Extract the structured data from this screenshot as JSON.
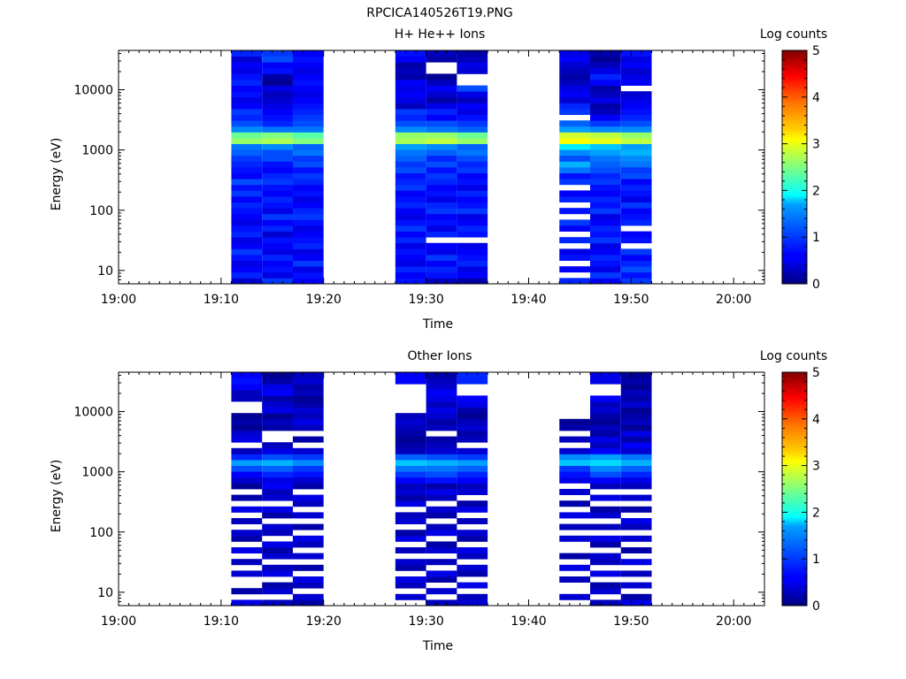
{
  "page": {
    "title": "RPCICA140526T19.PNG"
  },
  "colorbar": {
    "label": "Log counts",
    "min": 0,
    "max": 5,
    "ticks": [
      "0",
      "1",
      "2",
      "3",
      "4",
      "5"
    ]
  },
  "chart_data": [
    {
      "type": "heatmap",
      "title": "H+ He++ Ions",
      "xlabel": "Time",
      "ylabel": "Energy (eV)",
      "xticks": [
        "19:00",
        "19:10",
        "19:20",
        "19:30",
        "19:40",
        "19:50",
        "20:00"
      ],
      "yticks": [
        "10",
        "100",
        "1000",
        "10000"
      ],
      "yscale": "log",
      "xlim": [
        "19:00",
        "20:03"
      ],
      "ylim": [
        6,
        45000
      ],
      "colorscale": "jet",
      "zlim": [
        0,
        5
      ],
      "columns": [
        {
          "start": "19:11",
          "end": "19:14",
          "rows": [
            0.4,
            0.8,
            0.6,
            0.5,
            0.7,
            0.9,
            0.6,
            0.5,
            0.8,
            0.7,
            0.5,
            0.6,
            0.7,
            0.8,
            0.6,
            0.9,
            0.7,
            1.0,
            0.6,
            0.7,
            0.8,
            0.9,
            1.1,
            1.2,
            2.6,
            2.4,
            1.3,
            1.0,
            0.8,
            0.9,
            0.6,
            0.5,
            0.7,
            0.6,
            0.8,
            0.7,
            0.5,
            0.6,
            0.4,
            0.8
          ]
        },
        {
          "start": "19:14",
          "end": "19:17",
          "rows": [
            0.9,
            0.5,
            0.7,
            0.6,
            0.8,
            0.5,
            0.6,
            0.7,
            0.4,
            0.8,
            0.6,
            0.9,
            0.5,
            0.7,
            0.8,
            0.6,
            0.7,
            0.9,
            0.8,
            0.6,
            0.7,
            1.0,
            1.0,
            1.3,
            2.7,
            2.5,
            1.2,
            0.8,
            0.7,
            0.6,
            0.5,
            0.4,
            0.3,
            0.5,
            0.1,
            0.2,
            0.7,
            0.6,
            1.0,
            0.9
          ]
        },
        {
          "start": "19:17",
          "end": "19:20",
          "rows": [
            0.6,
            0.7,
            0.5,
            0.9,
            0.6,
            0.5,
            0.8,
            0.7,
            0.6,
            0.5,
            0.7,
            0.9,
            0.8,
            0.6,
            0.5,
            0.7,
            0.6,
            0.8,
            0.9,
            0.7,
            1.0,
            0.9,
            1.2,
            1.1,
            2.5,
            2.3,
            1.2,
            1.0,
            0.9,
            0.8,
            0.7,
            0.6,
            0.5,
            0.6,
            0.7,
            0.6,
            0.5,
            0.6,
            0.7,
            0.6
          ]
        },
        {
          "start": "19:27",
          "end": "19:30",
          "rows": [
            0.7,
            0.6,
            0.8,
            0.5,
            0.6,
            0.7,
            0.5,
            0.8,
            0.6,
            0.9,
            0.7,
            0.5,
            0.6,
            0.8,
            0.7,
            0.6,
            0.9,
            0.8,
            0.7,
            1.0,
            0.9,
            1.1,
            1.2,
            1.4,
            2.7,
            2.6,
            1.3,
            1.0,
            0.8,
            0.9,
            0.3,
            0.5,
            0.6,
            0.5,
            0.6,
            0.2,
            0.3,
            0.2,
            0.6,
            0.7
          ]
        },
        {
          "start": "19:30",
          "end": "19:33",
          "rows": [
            0.3,
            0.7,
            0.8,
            0.6,
            0.9,
            0.5,
            0.6,
            -1,
            0.8,
            0.5,
            0.7,
            0.6,
            0.9,
            0.8,
            0.5,
            0.7,
            0.6,
            0.8,
            0.9,
            0.7,
            1.0,
            0.8,
            1.1,
            1.3,
            2.8,
            2.6,
            1.2,
            1.0,
            0.6,
            0.8,
            0.5,
            0.2,
            0.4,
            0.6,
            0.3,
            0.1,
            -1,
            -1,
            0.2,
            0.3
          ]
        },
        {
          "start": "19:33",
          "end": "19:36",
          "rows": [
            0.2,
            0.6,
            0.5,
            0.8,
            0.7,
            0.6,
            0.5,
            -1,
            0.7,
            0.8,
            0.6,
            0.5,
            0.9,
            0.7,
            0.6,
            0.8,
            0.5,
            0.7,
            0.6,
            0.9,
            0.8,
            1.0,
            1.2,
            1.1,
            2.6,
            2.4,
            1.1,
            0.9,
            0.7,
            0.5,
            0.6,
            0.3,
            0.5,
            1.0,
            -1,
            -1,
            0.4,
            0.5,
            0.3,
            0.2
          ]
        },
        {
          "start": "19:43",
          "end": "19:46",
          "rows": [
            0.8,
            -1,
            0.6,
            -1,
            0.7,
            0.5,
            -1,
            0.8,
            -1,
            0.6,
            0.9,
            -1,
            0.7,
            -1,
            0.8,
            0.6,
            -1,
            0.9,
            0.7,
            1.2,
            1.5,
            1.0,
            1.3,
            1.8,
            3.1,
            2.9,
            1.4,
            1.1,
            -1,
            0.9,
            0.8,
            0.4,
            0.6,
            0.5,
            0.3,
            0.2,
            0.3,
            0.4,
            0.6,
            0.5
          ]
        },
        {
          "start": "19:46",
          "end": "19:49",
          "rows": [
            0.6,
            0.9,
            0.5,
            0.7,
            0.8,
            0.6,
            0.5,
            0.9,
            0.7,
            0.8,
            0.6,
            0.5,
            0.9,
            0.7,
            0.8,
            0.6,
            0.7,
            0.9,
            0.8,
            1.0,
            1.1,
            1.2,
            1.4,
            1.6,
            3.0,
            2.8,
            1.3,
            0.9,
            0.6,
            0.3,
            0.2,
            0.5,
            0.3,
            0.2,
            0.6,
            0.8,
            0.5,
            0.3,
            0.1,
            0.2
          ]
        },
        {
          "start": "19:49",
          "end": "19:52",
          "rows": [
            0.9,
            0.7,
            1.0,
            0.8,
            0.6,
            0.9,
            -1,
            0.7,
            0.6,
            -1,
            0.8,
            0.7,
            0.6,
            0.9,
            0.5,
            0.7,
            0.8,
            0.6,
            1.0,
            0.9,
            1.2,
            1.3,
            1.5,
            1.4,
            2.8,
            2.6,
            1.3,
            1.0,
            0.8,
            0.7,
            0.6,
            0.5,
            0.4,
            -1,
            0.6,
            0.5,
            0.4,
            0.6,
            0.5,
            0.7
          ]
        }
      ]
    },
    {
      "type": "heatmap",
      "title": "Other Ions",
      "xlabel": "Time",
      "ylabel": "Energy (eV)",
      "xticks": [
        "19:00",
        "19:10",
        "19:20",
        "19:30",
        "19:40",
        "19:50",
        "20:00"
      ],
      "yticks": [
        "10",
        "100",
        "1000",
        "10000"
      ],
      "yscale": "log",
      "xlim": [
        "19:00",
        "20:03"
      ],
      "ylim": [
        6,
        45000
      ],
      "colorscale": "jet",
      "zlim": [
        0,
        5
      ],
      "columns": [
        {
          "start": "19:11",
          "end": "19:14",
          "rows": [
            0.5,
            -1,
            0.2,
            -1,
            -1,
            0.4,
            -1,
            0.3,
            -1,
            0.5,
            -1,
            0.2,
            0.4,
            -1,
            0.3,
            -1,
            0.5,
            -1,
            0.2,
            -1,
            0.1,
            0.4,
            0.6,
            1.0,
            1.4,
            0.8,
            0.3,
            -1,
            0.5,
            0.4,
            0.1,
            0.2,
            0.1,
            -1,
            -1,
            0.3,
            0.3,
            0.6,
            0.7,
            0.6
          ]
        },
        {
          "start": "19:14",
          "end": "19:17",
          "rows": [
            0.3,
            -1,
            0.4,
            0.2,
            -1,
            0.5,
            0.3,
            -1,
            0.4,
            0.2,
            0.5,
            -1,
            0.3,
            0.4,
            -1,
            0.2,
            0.5,
            -1,
            0.4,
            0.3,
            0.6,
            0.5,
            0.8,
            1.1,
            1.5,
            1.0,
            0.5,
            0.3,
            -1,
            -1,
            0.2,
            0.3,
            0.1,
            0.5,
            0.4,
            0.2,
            0.6,
            0.5,
            0.2,
            0.1
          ]
        },
        {
          "start": "19:17",
          "end": "19:20",
          "rows": [
            0.2,
            0.4,
            -1,
            0.3,
            0.5,
            -1,
            0.2,
            -1,
            0.4,
            -1,
            0.3,
            0.5,
            -1,
            0.2,
            -1,
            0.4,
            -1,
            0.3,
            0.5,
            -1,
            0.2,
            0.4,
            0.7,
            0.9,
            1.3,
            0.9,
            0.4,
            -1,
            0.2,
            -1,
            0.3,
            0.5,
            0.3,
            0.4,
            0.2,
            0.1,
            0.3,
            0.2,
            0.4,
            0.3
          ]
        },
        {
          "start": "19:27",
          "end": "19:30",
          "rows": [
            -1,
            0.4,
            -1,
            0.3,
            0.5,
            -1,
            0.2,
            0.4,
            -1,
            0.3,
            -1,
            0.5,
            0.2,
            -1,
            0.4,
            0.3,
            -1,
            0.5,
            0.2,
            0.4,
            0.3,
            0.6,
            0.9,
            1.2,
            1.6,
            1.1,
            0.3,
            0.2,
            0.1,
            0.2,
            0.3,
            0.4,
            0.3,
            -1,
            -1,
            -1,
            -1,
            -1,
            0.6,
            0.6
          ]
        },
        {
          "start": "19:30",
          "end": "19:33",
          "rows": [
            0.3,
            -1,
            0.4,
            -1,
            0.2,
            0.5,
            -1,
            0.3,
            -1,
            0.4,
            0.2,
            -1,
            0.5,
            0.3,
            -1,
            0.2,
            0.4,
            -1,
            0.3,
            0.5,
            0.2,
            0.7,
            1.0,
            1.2,
            1.5,
            1.0,
            0.4,
            0.3,
            0.2,
            -1,
            0.3,
            0.2,
            0.4,
            0.5,
            0.3,
            0.5,
            0.6,
            0.4,
            0.3,
            0.2
          ]
        },
        {
          "start": "19:33",
          "end": "19:36",
          "rows": [
            0.4,
            0.3,
            -1,
            0.5,
            -1,
            0.2,
            0.4,
            -1,
            0.3,
            0.5,
            -1,
            0.2,
            0.4,
            -1,
            0.3,
            -1,
            0.5,
            0.2,
            -1,
            0.4,
            0.3,
            0.6,
            0.8,
            1.1,
            1.4,
            0.9,
            0.4,
            -1,
            0.3,
            0.2,
            0.4,
            0.3,
            0.1,
            0.2,
            0.5,
            0.6,
            -1,
            -1,
            0.8,
            0.8
          ]
        },
        {
          "start": "19:43",
          "end": "19:46",
          "rows": [
            -1,
            0.4,
            -1,
            -1,
            0.3,
            -1,
            0.5,
            -1,
            0.2,
            -1,
            -1,
            0.4,
            -1,
            0.3,
            -1,
            0.5,
            -1,
            0.2,
            -1,
            0.4,
            -1,
            0.5,
            0.7,
            0.9,
            1.6,
            1.3,
            0.4,
            -1,
            0.3,
            -1,
            0.2,
            0.1,
            -1,
            -1,
            -1,
            -1,
            -1,
            -1,
            -1,
            -1
          ]
        },
        {
          "start": "19:46",
          "end": "19:49",
          "rows": [
            0.3,
            -1,
            0.4,
            0.2,
            -1,
            0.5,
            -1,
            0.3,
            0.4,
            -1,
            0.2,
            0.5,
            -1,
            0.3,
            -1,
            0.4,
            0.2,
            -1,
            0.5,
            -1,
            0.3,
            0.6,
            1.0,
            1.3,
            1.7,
            1.4,
            0.6,
            0.3,
            0.5,
            0.2,
            0.3,
            0.1,
            0.2,
            0.4,
            0.3,
            0.6,
            -1,
            -1,
            0.5,
            0.5
          ]
        },
        {
          "start": "19:49",
          "end": "19:52",
          "rows": [
            0.5,
            0.2,
            -1,
            0.4,
            -1,
            0.3,
            -1,
            0.5,
            -1,
            0.2,
            -1,
            0.4,
            -1,
            0.3,
            0.5,
            -1,
            0.2,
            -1,
            0.4,
            -1,
            0.3,
            0.5,
            0.8,
            1.1,
            1.5,
            1.2,
            0.4,
            0.6,
            0.2,
            0.5,
            0.1,
            0.3,
            0.2,
            0.1,
            0.4,
            0.2,
            0.3,
            0.1,
            0.2,
            0.1
          ]
        }
      ]
    }
  ]
}
